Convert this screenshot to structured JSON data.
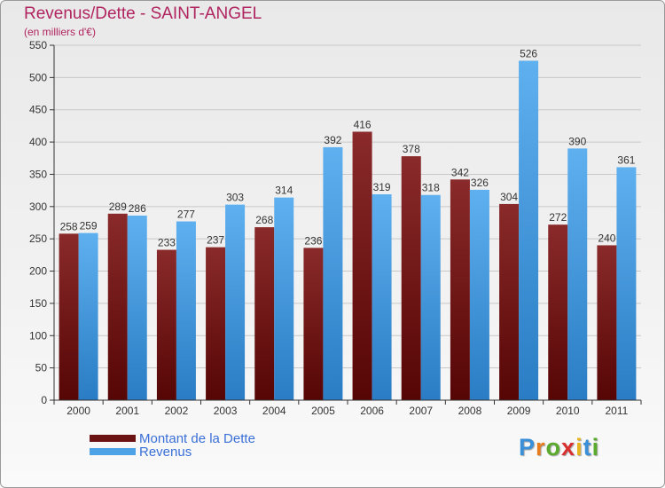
{
  "header": {
    "title": "Revenus/Dette - SAINT-ANGEL",
    "subtitle": "(en milliers d'€)"
  },
  "chart_data": {
    "type": "bar",
    "categories": [
      "2000",
      "2001",
      "2002",
      "2003",
      "2004",
      "2005",
      "2006",
      "2007",
      "2008",
      "2009",
      "2010",
      "2011"
    ],
    "series": [
      {
        "name": "Montant de la Dette",
        "color": "#6b1212",
        "values": [
          258,
          289,
          233,
          237,
          268,
          236,
          416,
          378,
          342,
          304,
          272,
          240
        ]
      },
      {
        "name": "Revenus",
        "color": "#4da3e6",
        "values": [
          259,
          286,
          277,
          303,
          314,
          392,
          319,
          318,
          326,
          526,
          390,
          361
        ]
      }
    ],
    "yticks": [
      0,
      50,
      100,
      150,
      200,
      250,
      300,
      350,
      400,
      450,
      500,
      550
    ],
    "ylim": [
      0,
      550
    ],
    "grid": true,
    "legend_position": "bottom-left"
  },
  "legend": {
    "items": [
      {
        "label": "Montant de la Dette",
        "color": "#6b1212"
      },
      {
        "label": "Revenus",
        "color": "#4da3e6"
      }
    ]
  },
  "logo": {
    "letters": [
      {
        "char": "P",
        "color": "#3a8fd9"
      },
      {
        "char": "r",
        "color": "#e87d1e"
      },
      {
        "char": "o",
        "color": "#5aaa2e"
      },
      {
        "char": "x",
        "color": "#d92f2f"
      },
      {
        "char": "i",
        "color": "#e8b41e"
      },
      {
        "char": "t",
        "color": "#3a8fd9"
      },
      {
        "char": "i",
        "color": "#5aaa2e"
      }
    ]
  }
}
